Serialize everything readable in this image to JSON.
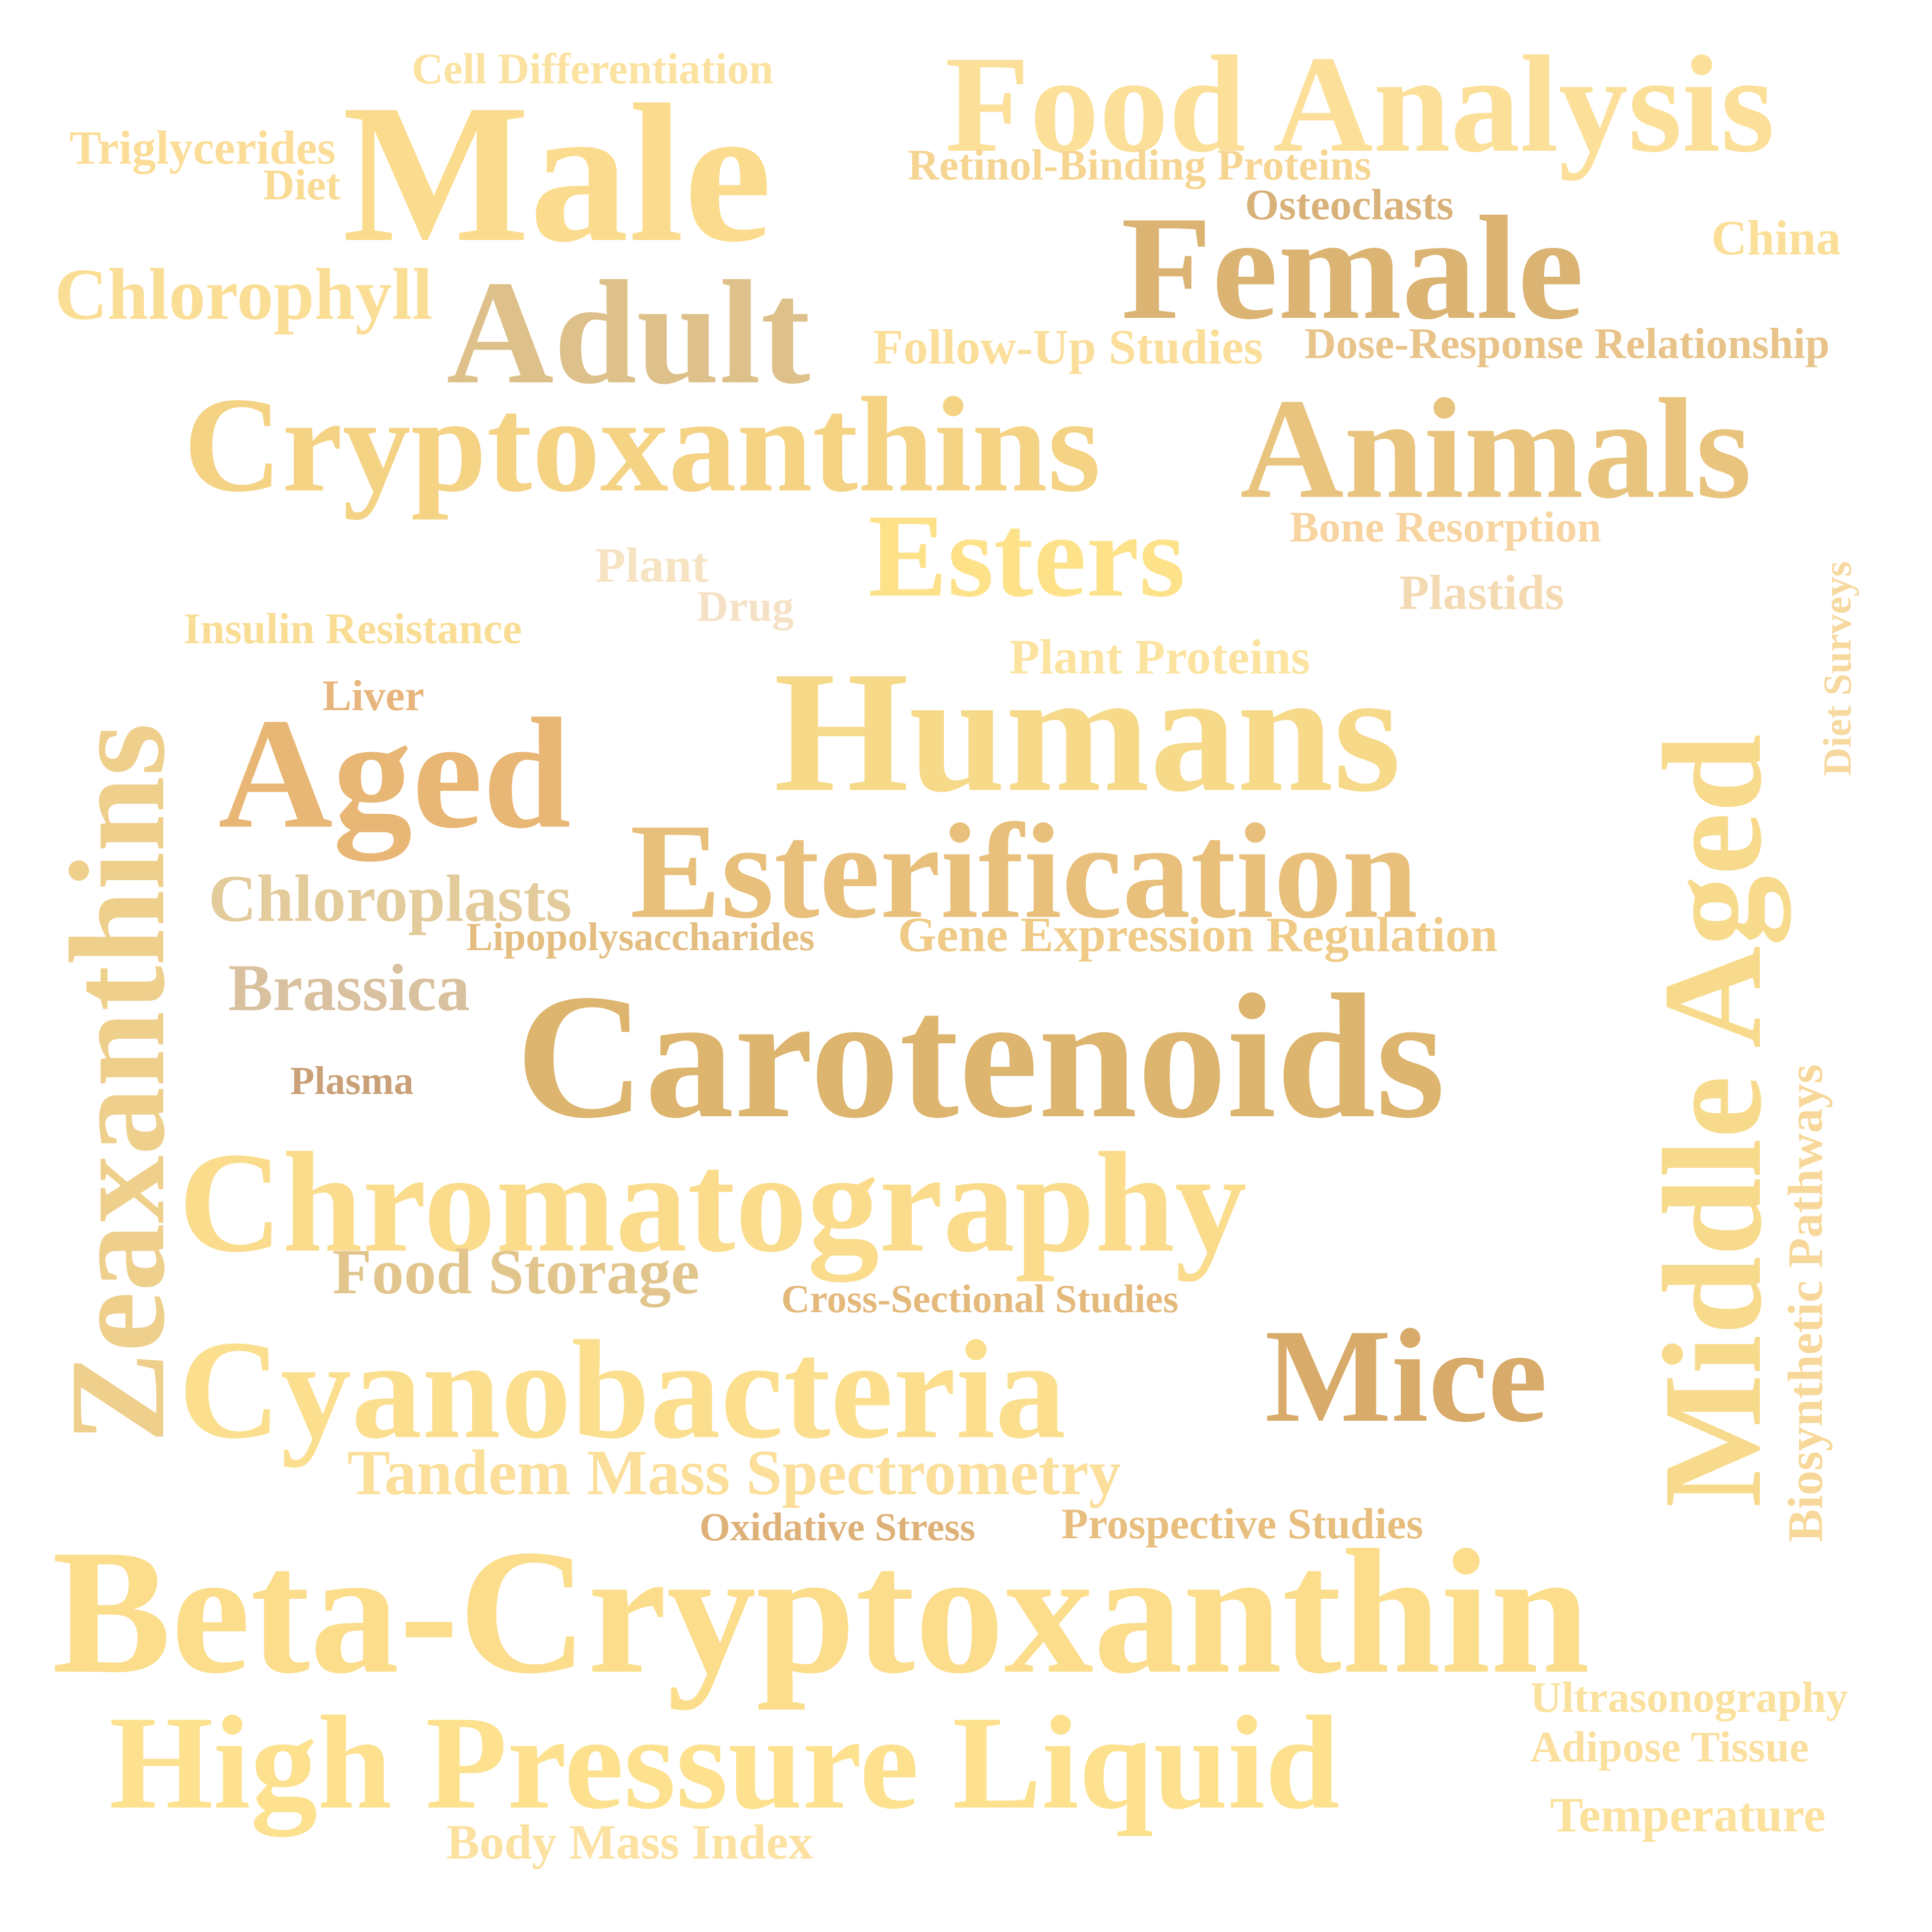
{
  "words": [
    {
      "text": "Cell Differentiation",
      "color": "#FCE2A0"
    },
    {
      "text": "Food Analysis",
      "color": "#FCE09A"
    },
    {
      "text": "Triglycerides",
      "color": "#FBDD98"
    },
    {
      "text": "Male",
      "color": "#FBDC8E"
    },
    {
      "text": "Diet",
      "color": "#FADB94"
    },
    {
      "text": "Retinol-Binding Proteins",
      "color": "#F6D592"
    },
    {
      "text": "Osteoclasts",
      "color": "#D9B27A"
    },
    {
      "text": "Female",
      "color": "#DBB373"
    },
    {
      "text": "China",
      "color": "#FBDF98"
    },
    {
      "text": "Chlorophyll",
      "color": "#FBDE96"
    },
    {
      "text": "Adult",
      "color": "#DEC08A"
    },
    {
      "text": "Follow-Up Studies",
      "color": "#FBDE9A"
    },
    {
      "text": "Dose-Response Relationship",
      "color": "#E8C48A"
    },
    {
      "text": "Cryptoxanthins",
      "color": "#F5D385"
    },
    {
      "text": "Animals",
      "color": "#E9C47E"
    },
    {
      "text": "Bone Resorption",
      "color": "#F8D4A0"
    },
    {
      "text": "Esters",
      "color": "#FEE28A"
    },
    {
      "text": "Plant",
      "color": "#F6E3C2"
    },
    {
      "text": "Plastids",
      "color": "#F4DAB3"
    },
    {
      "text": "Drug",
      "color": "#F5E2C6"
    },
    {
      "text": "Insulin Resistance",
      "color": "#FADD95"
    },
    {
      "text": "Plant Proteins",
      "color": "#FCE3A0"
    },
    {
      "text": "Humans",
      "color": "#F7D98A"
    },
    {
      "text": "Liver",
      "color": "#E8B57C"
    },
    {
      "text": "Aged",
      "color": "#E9B775"
    },
    {
      "text": "Esterification",
      "color": "#E8C07C"
    },
    {
      "text": "Chloroplasts",
      "color": "#E3CB9C"
    },
    {
      "text": "Lipopolysaccharides",
      "color": "#E4BD80"
    },
    {
      "text": "Gene Expression Regulation",
      "color": "#EFCB87"
    },
    {
      "text": "Brassica",
      "color": "#D9C09E"
    },
    {
      "text": "Carotenoids",
      "color": "#DDB56F"
    },
    {
      "text": "Plasma",
      "color": "#C9A078"
    },
    {
      "text": "Chromatography",
      "color": "#FADC8C"
    },
    {
      "text": "Food Storage",
      "color": "#E2C58D"
    },
    {
      "text": "Cross-Sectional Studies",
      "color": "#E4B97C"
    },
    {
      "text": "Mice",
      "color": "#D9AB6A"
    },
    {
      "text": "Cyanobacteria",
      "color": "#FBDF8E"
    },
    {
      "text": "Tandem Mass Spectrometry",
      "color": "#FBDF9A"
    },
    {
      "text": "Oxidative Stress",
      "color": "#DEB178"
    },
    {
      "text": "Prospective Studies",
      "color": "#E8BE7E"
    },
    {
      "text": "Beta-Cryptoxanthin",
      "color": "#FBDD8C"
    },
    {
      "text": "Ultrasonography",
      "color": "#FBE19E"
    },
    {
      "text": "High Pressure Liquid",
      "color": "#FDE18E"
    },
    {
      "text": "Adipose Tissue",
      "color": "#FBDF9E"
    },
    {
      "text": "Temperature",
      "color": "#FCE19C"
    },
    {
      "text": "Body Mass Index",
      "color": "#FCE1A0"
    },
    {
      "text": "Zeaxanthins",
      "color": "#EFCF8C"
    },
    {
      "text": "Middle Aged",
      "color": "#F8DA8C"
    },
    {
      "text": "Diet Surveys",
      "color": "#F7D9A0"
    },
    {
      "text": "Biosynthetic Pathways",
      "color": "#F8D89A"
    }
  ]
}
